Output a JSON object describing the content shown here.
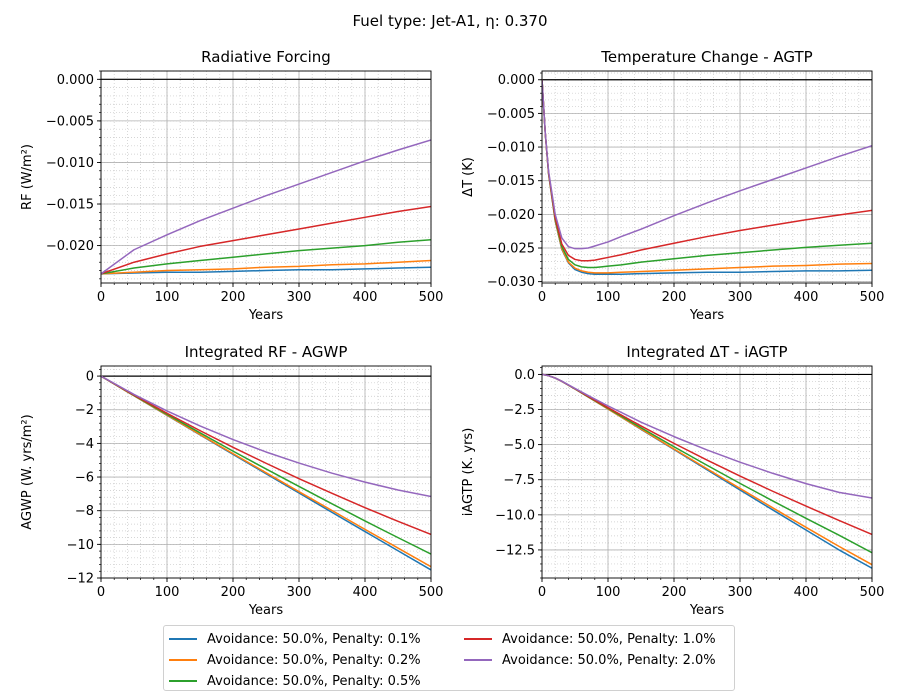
{
  "figure": {
    "suptitle": "Fuel type: Jet-A1, η: 0.370"
  },
  "legend": {
    "entries": [
      {
        "label": "Avoidance: 50.0%, Penalty: 0.1%",
        "color": "#1f77b4"
      },
      {
        "label": "Avoidance: 50.0%, Penalty: 0.2%",
        "color": "#ff7f0e"
      },
      {
        "label": "Avoidance: 50.0%, Penalty: 0.5%",
        "color": "#2ca02c"
      },
      {
        "label": "Avoidance: 50.0%, Penalty: 1.0%",
        "color": "#d62728"
      },
      {
        "label": "Avoidance: 50.0%, Penalty: 2.0%",
        "color": "#9467bd"
      }
    ]
  },
  "chart_data": [
    {
      "type": "line",
      "title": "Radiative Forcing",
      "xlabel": "Years",
      "ylabel": "RF (W/m²)",
      "xlim": [
        0,
        500
      ],
      "ylim": [
        -0.0245,
        0.001
      ],
      "xticks": [
        "0",
        "100",
        "200",
        "300",
        "400",
        "500"
      ],
      "yticks": [
        {
          "v": 0,
          "label": "0.000"
        },
        {
          "v": -0.005,
          "label": "−0.005"
        },
        {
          "v": -0.01,
          "label": "−0.010"
        },
        {
          "v": -0.015,
          "label": "−0.015"
        },
        {
          "v": -0.02,
          "label": "−0.020"
        }
      ],
      "grid": true,
      "x": [
        0,
        50,
        100,
        150,
        200,
        250,
        300,
        350,
        400,
        450,
        500
      ],
      "series": [
        {
          "name": "Avoidance: 50.0%, Penalty: 0.1%",
          "color": "#1f77b4",
          "values": [
            -0.0234,
            -0.0233,
            -0.0232,
            -0.0232,
            -0.0231,
            -0.023,
            -0.0229,
            -0.0229,
            -0.0228,
            -0.0227,
            -0.0226
          ]
        },
        {
          "name": "Avoidance: 50.0%, Penalty: 0.2%",
          "color": "#ff7f0e",
          "values": [
            -0.0234,
            -0.0232,
            -0.023,
            -0.0229,
            -0.0228,
            -0.0226,
            -0.0225,
            -0.0223,
            -0.0222,
            -0.022,
            -0.0218
          ]
        },
        {
          "name": "Avoidance: 50.0%, Penalty: 0.5%",
          "color": "#2ca02c",
          "values": [
            -0.0234,
            -0.0227,
            -0.0222,
            -0.0218,
            -0.0214,
            -0.021,
            -0.0206,
            -0.0203,
            -0.02,
            -0.0196,
            -0.0193
          ]
        },
        {
          "name": "Avoidance: 50.0%, Penalty: 1.0%",
          "color": "#d62728",
          "values": [
            -0.0234,
            -0.022,
            -0.021,
            -0.0201,
            -0.0194,
            -0.0187,
            -0.018,
            -0.0173,
            -0.0166,
            -0.0159,
            -0.0153
          ]
        },
        {
          "name": "Avoidance: 50.0%, Penalty: 2.0%",
          "color": "#9467bd",
          "values": [
            -0.0234,
            -0.0205,
            -0.0187,
            -0.017,
            -0.0155,
            -0.014,
            -0.0126,
            -0.0112,
            -0.0098,
            -0.0085,
            -0.0073
          ]
        }
      ]
    },
    {
      "type": "line",
      "title": "Temperature Change - AGTP",
      "xlabel": "Years",
      "ylabel": "ΔT (K)",
      "xlim": [
        0,
        500
      ],
      "ylim": [
        -0.0302,
        0.0013
      ],
      "xticks": [
        "0",
        "100",
        "200",
        "300",
        "400",
        "500"
      ],
      "yticks": [
        {
          "v": 0,
          "label": "0.000"
        },
        {
          "v": -0.005,
          "label": "−0.005"
        },
        {
          "v": -0.01,
          "label": "−0.010"
        },
        {
          "v": -0.015,
          "label": "−0.015"
        },
        {
          "v": -0.02,
          "label": "−0.020"
        },
        {
          "v": -0.025,
          "label": "−0.025"
        },
        {
          "v": -0.03,
          "label": "−0.030"
        }
      ],
      "grid": true,
      "x": [
        0,
        5,
        10,
        20,
        30,
        40,
        50,
        60,
        70,
        80,
        90,
        100,
        120,
        150,
        200,
        250,
        300,
        350,
        400,
        450,
        500
      ],
      "series": [
        {
          "name": "Avoidance: 50.0%, Penalty: 0.1%",
          "color": "#1f77b4",
          "values": [
            0,
            -0.008,
            -0.014,
            -0.021,
            -0.0252,
            -0.0272,
            -0.0282,
            -0.0286,
            -0.0288,
            -0.0289,
            -0.0289,
            -0.0289,
            -0.0289,
            -0.0288,
            -0.0287,
            -0.0286,
            -0.0286,
            -0.0285,
            -0.0284,
            -0.0284,
            -0.0283
          ]
        },
        {
          "name": "Avoidance: 50.0%, Penalty: 0.2%",
          "color": "#ff7f0e",
          "values": [
            0,
            -0.008,
            -0.014,
            -0.0209,
            -0.0251,
            -0.0271,
            -0.028,
            -0.0284,
            -0.0286,
            -0.0287,
            -0.0287,
            -0.0287,
            -0.0286,
            -0.0285,
            -0.0283,
            -0.0281,
            -0.0279,
            -0.0277,
            -0.0276,
            -0.0274,
            -0.0273
          ]
        },
        {
          "name": "Avoidance: 50.0%, Penalty: 0.5%",
          "color": "#2ca02c",
          "values": [
            0,
            -0.008,
            -0.0139,
            -0.0207,
            -0.0248,
            -0.0267,
            -0.0275,
            -0.0278,
            -0.0279,
            -0.0279,
            -0.0278,
            -0.0277,
            -0.0275,
            -0.0271,
            -0.0266,
            -0.0261,
            -0.0257,
            -0.0253,
            -0.0249,
            -0.0246,
            -0.0243
          ]
        },
        {
          "name": "Avoidance: 50.0%, Penalty: 1.0%",
          "color": "#d62728",
          "values": [
            0,
            -0.008,
            -0.0138,
            -0.0205,
            -0.0244,
            -0.0261,
            -0.0267,
            -0.0269,
            -0.0269,
            -0.0268,
            -0.0266,
            -0.0264,
            -0.026,
            -0.0253,
            -0.0243,
            -0.0233,
            -0.0224,
            -0.0216,
            -0.0208,
            -0.0201,
            -0.0194
          ]
        },
        {
          "name": "Avoidance: 50.0%, Penalty: 2.0%",
          "color": "#9467bd",
          "values": [
            0,
            -0.0079,
            -0.0136,
            -0.02,
            -0.0235,
            -0.0248,
            -0.0251,
            -0.0251,
            -0.025,
            -0.0247,
            -0.0244,
            -0.0241,
            -0.0233,
            -0.0222,
            -0.0202,
            -0.0183,
            -0.0165,
            -0.0148,
            -0.0131,
            -0.0114,
            -0.0098
          ]
        }
      ]
    },
    {
      "type": "line",
      "title": "Integrated RF - AGWP",
      "xlabel": "Years",
      "ylabel": "AGWP (W. yrs/m²)",
      "xlim": [
        0,
        500
      ],
      "ylim": [
        -12,
        0.6
      ],
      "xticks": [
        "0",
        "100",
        "200",
        "300",
        "400",
        "500"
      ],
      "yticks": [
        {
          "v": 0,
          "label": "0"
        },
        {
          "v": -2,
          "label": "−2"
        },
        {
          "v": -4,
          "label": "−4"
        },
        {
          "v": -6,
          "label": "−6"
        },
        {
          "v": -8,
          "label": "−8"
        },
        {
          "v": -10,
          "label": "−10"
        },
        {
          "v": -12,
          "label": "−12"
        }
      ],
      "grid": true,
      "x": [
        0,
        50,
        100,
        150,
        200,
        250,
        300,
        350,
        400,
        450,
        500
      ],
      "series": [
        {
          "name": "Avoidance: 50.0%, Penalty: 0.1%",
          "color": "#1f77b4",
          "values": [
            0,
            -1.17,
            -2.33,
            -3.49,
            -4.65,
            -5.8,
            -6.95,
            -8.1,
            -9.24,
            -10.38,
            -11.52
          ]
        },
        {
          "name": "Avoidance: 50.0%, Penalty: 0.2%",
          "color": "#ff7f0e",
          "values": [
            0,
            -1.17,
            -2.32,
            -3.47,
            -4.61,
            -5.74,
            -6.87,
            -7.99,
            -9.11,
            -10.22,
            -11.33
          ]
        },
        {
          "name": "Avoidance: 50.0%, Penalty: 0.5%",
          "color": "#2ca02c",
          "values": [
            0,
            -1.15,
            -2.27,
            -3.37,
            -4.46,
            -5.52,
            -6.56,
            -7.59,
            -8.61,
            -9.6,
            -10.58
          ]
        },
        {
          "name": "Avoidance: 50.0%, Penalty: 1.0%",
          "color": "#d62728",
          "values": [
            0,
            -1.13,
            -2.21,
            -3.24,
            -4.23,
            -5.18,
            -6.1,
            -6.97,
            -7.82,
            -8.63,
            -9.41
          ]
        },
        {
          "name": "Avoidance: 50.0%, Penalty: 2.0%",
          "color": "#9467bd",
          "values": [
            0,
            -1.09,
            -2.07,
            -2.96,
            -3.77,
            -4.51,
            -5.17,
            -5.77,
            -6.3,
            -6.77,
            -7.16
          ]
        }
      ]
    },
    {
      "type": "line",
      "title": "Integrated ΔT - iAGTP",
      "xlabel": "Years",
      "ylabel": "iAGTP (K. yrs)",
      "xlim": [
        0,
        500
      ],
      "ylim": [
        -14.5,
        0.6
      ],
      "xticks": [
        "0",
        "100",
        "200",
        "300",
        "400",
        "500"
      ],
      "yticks": [
        {
          "v": 0,
          "label": "0.0"
        },
        {
          "v": -2.5,
          "label": "−2.5"
        },
        {
          "v": -5,
          "label": "−5.0"
        },
        {
          "v": -7.5,
          "label": "−7.5"
        },
        {
          "v": -10,
          "label": "−10.0"
        },
        {
          "v": -12.5,
          "label": "−12.5"
        }
      ],
      "grid": true,
      "x": [
        0,
        10,
        20,
        30,
        50,
        75,
        100,
        150,
        200,
        250,
        300,
        350,
        400,
        450,
        500
      ],
      "series": [
        {
          "name": "Avoidance: 50.0%, Penalty: 0.1%",
          "color": "#1f77b4",
          "values": [
            0,
            -0.09,
            -0.26,
            -0.49,
            -1.04,
            -1.75,
            -2.46,
            -3.91,
            -5.35,
            -6.79,
            -8.23,
            -9.66,
            -11.08,
            -12.5,
            -13.8
          ]
        },
        {
          "name": "Avoidance: 50.0%, Penalty: 0.2%",
          "color": "#ff7f0e",
          "values": [
            0,
            -0.09,
            -0.26,
            -0.49,
            -1.04,
            -1.75,
            -2.46,
            -3.89,
            -5.31,
            -6.72,
            -8.12,
            -9.51,
            -10.89,
            -12.25,
            -13.55
          ]
        },
        {
          "name": "Avoidance: 50.0%, Penalty: 0.5%",
          "color": "#2ca02c",
          "values": [
            0,
            -0.09,
            -0.26,
            -0.49,
            -1.03,
            -1.73,
            -2.42,
            -3.8,
            -5.15,
            -6.47,
            -7.76,
            -9.02,
            -10.25,
            -11.45,
            -12.7
          ]
        },
        {
          "name": "Avoidance: 50.0%, Penalty: 1.0%",
          "color": "#d62728",
          "values": [
            0,
            -0.09,
            -0.26,
            -0.49,
            -1.02,
            -1.7,
            -2.37,
            -3.67,
            -4.91,
            -6.1,
            -7.24,
            -8.33,
            -9.38,
            -10.4,
            -11.4
          ]
        },
        {
          "name": "Avoidance: 50.0%, Penalty: 2.0%",
          "color": "#9467bd",
          "values": [
            0,
            -0.09,
            -0.26,
            -0.48,
            -1.0,
            -1.63,
            -2.24,
            -3.4,
            -4.43,
            -5.38,
            -6.25,
            -7.05,
            -7.78,
            -8.4,
            -8.8
          ]
        }
      ]
    }
  ]
}
